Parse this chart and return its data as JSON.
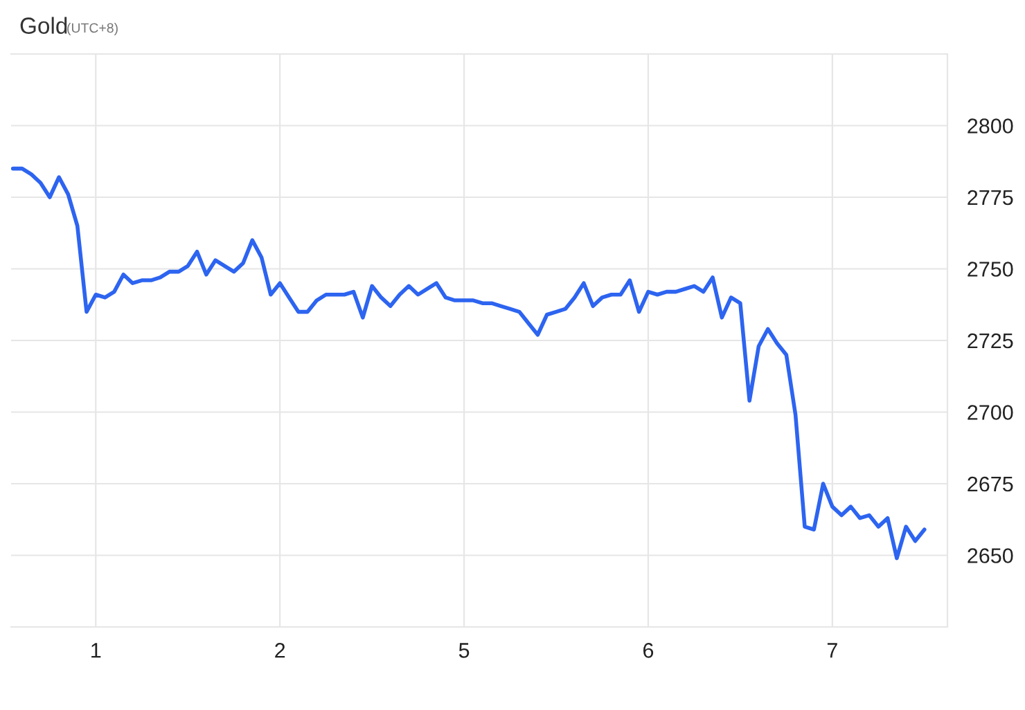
{
  "chart_data": {
    "type": "line",
    "title": "Gold",
    "subtitle": "(UTC+8)",
    "categories": [
      null,
      null,
      null,
      null,
      null,
      null,
      null,
      null,
      null,
      "1",
      null,
      null,
      null,
      null,
      null,
      null,
      null,
      null,
      null,
      null,
      null,
      null,
      null,
      null,
      null,
      null,
      null,
      null,
      null,
      "2",
      null,
      null,
      null,
      null,
      null,
      null,
      null,
      null,
      null,
      null,
      null,
      null,
      null,
      null,
      null,
      null,
      null,
      null,
      null,
      "5",
      null,
      null,
      null,
      null,
      null,
      null,
      null,
      null,
      null,
      null,
      null,
      null,
      null,
      null,
      null,
      null,
      null,
      null,
      null,
      "6",
      null,
      null,
      null,
      null,
      null,
      null,
      null,
      null,
      null,
      null,
      null,
      null,
      null,
      null,
      null,
      null,
      null,
      null,
      null,
      "7",
      null,
      null,
      null,
      null,
      null,
      null,
      null,
      null,
      null,
      null
    ],
    "series": [
      {
        "color": "#2d64f0",
        "values": [
          2785,
          2785,
          2783,
          2780,
          2775,
          2782,
          2776,
          2765,
          2735,
          2741,
          2740,
          2742,
          2748,
          2745,
          2746,
          2746,
          2747,
          2749,
          2749,
          2751,
          2756,
          2748,
          2753,
          2751,
          2749,
          2752,
          2760,
          2754,
          2741,
          2745,
          2740,
          2735,
          2735,
          2739,
          2741,
          2741,
          2741,
          2742,
          2733,
          2744,
          2740,
          2737,
          2741,
          2744,
          2741,
          2743,
          2745,
          2740,
          2739,
          2739,
          2739,
          2738,
          2738,
          2737,
          2736,
          2735,
          2731,
          2727,
          2734,
          2735,
          2736,
          2740,
          2745,
          2737,
          2740,
          2741,
          2741,
          2746,
          2735,
          2742,
          2741,
          2742,
          2742,
          2743,
          2744,
          2742,
          2747,
          2733,
          2740,
          2738,
          2704,
          2723,
          2729,
          2724,
          2720,
          2699,
          2660,
          2659,
          2675,
          2667,
          2664,
          2667,
          2663,
          2664,
          2660,
          2663,
          2649,
          2660,
          2655,
          2659
        ]
      }
    ],
    "ylim": [
      2625,
      2825
    ],
    "yticks": [
      2650,
      2675,
      2700,
      2725,
      2750,
      2775,
      2800
    ],
    "grid": true,
    "marker": "none",
    "line_style": "solid"
  }
}
